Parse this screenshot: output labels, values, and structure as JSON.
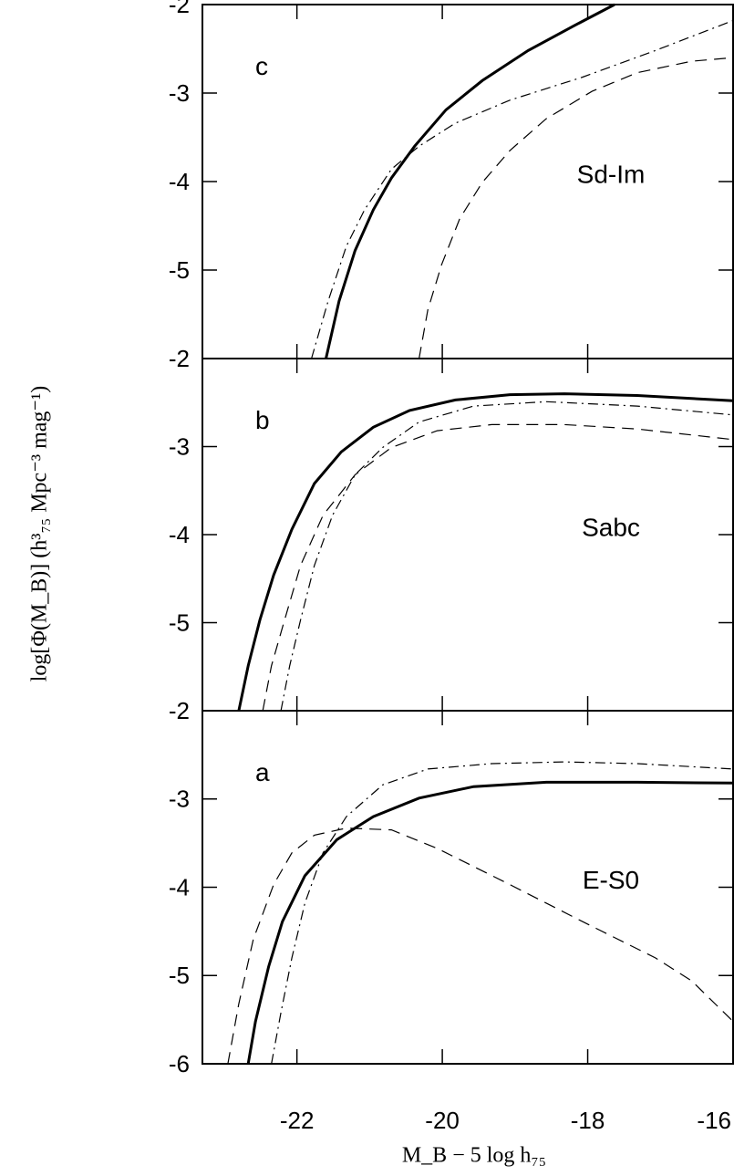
{
  "chart_data": [
    {
      "type": "line",
      "panel_label": "c",
      "annotation": "Sd-Im",
      "xlim": [
        -23.3,
        -16
      ],
      "xticks": [
        -22,
        -20,
        -18,
        -16
      ],
      "ylim": [
        -6,
        -2
      ],
      "yticks": [
        -2,
        -3,
        -4,
        -5
      ],
      "series": [
        {
          "color": "#000000",
          "dash": "solid",
          "x": [
            -21.6,
            -21.42,
            -21.2,
            -20.95,
            -20.7,
            -20.38,
            -19.95,
            -19.45,
            -18.82,
            -18.19,
            -17.63
          ],
          "values": [
            -6.0,
            -5.35,
            -4.78,
            -4.32,
            -3.96,
            -3.6,
            -3.19,
            -2.86,
            -2.52,
            -2.24,
            -2.0
          ]
        },
        {
          "color": "#000000",
          "dash": "dashed",
          "x": [
            -20.32,
            -20.2,
            -20.01,
            -19.76,
            -19.45,
            -19.07,
            -18.57,
            -17.94,
            -17.32,
            -16.57,
            -16.0
          ],
          "values": [
            -6.0,
            -5.45,
            -4.94,
            -4.42,
            -4.01,
            -3.65,
            -3.29,
            -2.98,
            -2.77,
            -2.64,
            -2.6
          ]
        },
        {
          "color": "#000000",
          "dash": "dashdot",
          "x": [
            -21.8,
            -21.57,
            -21.32,
            -21.07,
            -20.7,
            -20.32,
            -19.82,
            -19.07,
            -18.07,
            -17.07,
            -16.0
          ],
          "values": [
            -6.0,
            -5.35,
            -4.73,
            -4.32,
            -3.86,
            -3.6,
            -3.34,
            -3.08,
            -2.82,
            -2.52,
            -2.18
          ]
        }
      ]
    },
    {
      "type": "line",
      "panel_label": "b",
      "annotation": "Sabc",
      "ylabel": "log[Φ(M_B)]  (h³₇₅ Mpc⁻³ mag⁻¹)",
      "xlim": [
        -23.3,
        -16
      ],
      "xticks": [
        -22,
        -20,
        -18,
        -16
      ],
      "ylim": [
        -6,
        -2
      ],
      "yticks": [
        -2,
        -3,
        -4,
        -5
      ],
      "series": [
        {
          "color": "#000000",
          "dash": "solid",
          "x": [
            -22.8,
            -22.67,
            -22.51,
            -22.32,
            -22.07,
            -21.76,
            -21.39,
            -20.95,
            -20.45,
            -19.82,
            -19.07,
            -18.32,
            -17.32,
            -16.0
          ],
          "values": [
            -6.0,
            -5.49,
            -4.97,
            -4.46,
            -3.94,
            -3.42,
            -3.06,
            -2.78,
            -2.59,
            -2.47,
            -2.41,
            -2.4,
            -2.42,
            -2.48
          ]
        },
        {
          "color": "#000000",
          "dash": "dashed",
          "x": [
            -22.47,
            -22.35,
            -22.17,
            -21.95,
            -21.64,
            -21.2,
            -20.7,
            -20.07,
            -19.32,
            -18.32,
            -17.32,
            -16.0
          ],
          "values": [
            -6.0,
            -5.49,
            -4.97,
            -4.35,
            -3.78,
            -3.32,
            -3.01,
            -2.82,
            -2.75,
            -2.75,
            -2.8,
            -2.92
          ]
        },
        {
          "color": "#000000",
          "dash": "dashdot",
          "x": [
            -22.22,
            -22.1,
            -21.95,
            -21.76,
            -21.51,
            -21.2,
            -20.82,
            -20.32,
            -19.57,
            -18.57,
            -17.32,
            -16.0
          ],
          "values": [
            -6.0,
            -5.49,
            -4.97,
            -4.35,
            -3.78,
            -3.32,
            -3.01,
            -2.72,
            -2.54,
            -2.49,
            -2.54,
            -2.64
          ]
        }
      ]
    },
    {
      "type": "line",
      "panel_label": "a",
      "annotation": "E-S0",
      "xlabel": "M_B − 5 log h₇₅",
      "xlim": [
        -23.3,
        -16
      ],
      "xticks": [
        -22,
        -20,
        -18,
        -16
      ],
      "ylim": [
        -6,
        -2
      ],
      "yticks": [
        -2,
        -3,
        -4,
        -5,
        -6
      ],
      "series": [
        {
          "color": "#000000",
          "dash": "solid",
          "x": [
            -22.67,
            -22.57,
            -22.39,
            -22.2,
            -21.89,
            -21.45,
            -20.95,
            -20.32,
            -19.57,
            -18.57,
            -17.32,
            -16.0
          ],
          "values": [
            -6.0,
            -5.52,
            -4.9,
            -4.39,
            -3.87,
            -3.46,
            -3.2,
            -2.99,
            -2.86,
            -2.81,
            -2.81,
            -2.82
          ]
        },
        {
          "color": "#000000",
          "dash": "dashed",
          "x": [
            -22.95,
            -22.8,
            -22.6,
            -22.32,
            -22.07,
            -21.76,
            -21.32,
            -20.7,
            -20.07,
            -19.07,
            -18.07,
            -17.07,
            -16.57,
            -16.0
          ],
          "values": [
            -6.0,
            -5.32,
            -4.59,
            -3.97,
            -3.61,
            -3.41,
            -3.33,
            -3.35,
            -3.56,
            -3.97,
            -4.39,
            -4.8,
            -5.06,
            -5.52
          ]
        },
        {
          "color": "#000000",
          "dash": "dashdot",
          "x": [
            -22.35,
            -22.22,
            -22.07,
            -21.89,
            -21.64,
            -21.32,
            -20.82,
            -20.2,
            -19.32,
            -18.32,
            -17.32,
            -16.0
          ],
          "values": [
            -6.0,
            -5.42,
            -4.8,
            -4.18,
            -3.61,
            -3.2,
            -2.84,
            -2.66,
            -2.6,
            -2.58,
            -2.6,
            -2.66
          ]
        }
      ]
    }
  ]
}
